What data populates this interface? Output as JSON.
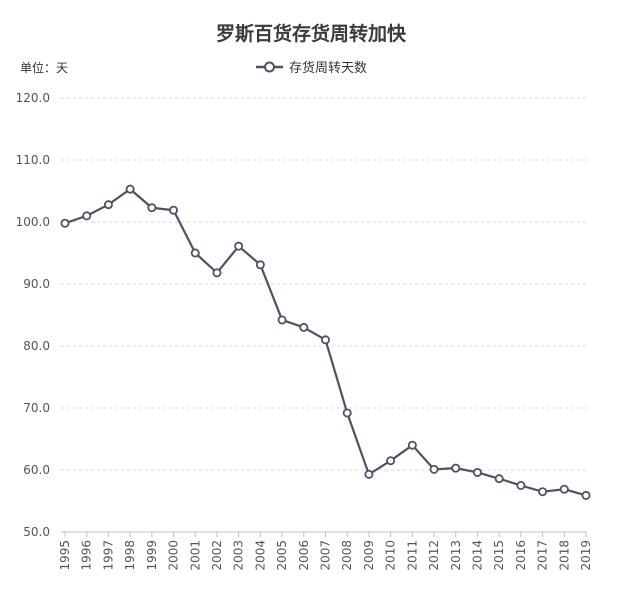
{
  "chart_data": {
    "type": "line",
    "title": "罗斯百货存货周转加快",
    "unit_label": "单位：天",
    "ylim": [
      50,
      120
    ],
    "yticks": [
      50,
      60,
      70,
      80,
      90,
      100,
      110,
      120
    ],
    "grid": true,
    "legend_position": "top-center",
    "categories": [
      "1995",
      "1996",
      "1997",
      "1998",
      "1999",
      "2000",
      "2001",
      "2002",
      "2003",
      "2004",
      "2005",
      "2006",
      "2007",
      "2008",
      "2009",
      "2010",
      "2011",
      "2012",
      "2013",
      "2014",
      "2015",
      "2016",
      "2017",
      "2018",
      "2019"
    ],
    "series": [
      {
        "name": "存货周转天数",
        "values": [
          99.8,
          101.0,
          102.8,
          105.3,
          102.3,
          101.9,
          95.0,
          91.8,
          96.1,
          93.1,
          84.2,
          83.0,
          81.0,
          69.2,
          59.3,
          61.5,
          64.0,
          60.1,
          60.3,
          59.6,
          58.6,
          57.5,
          56.5,
          56.9,
          55.9
        ]
      }
    ]
  },
  "colors": {
    "line": "#4a5463",
    "grid": "#d9d9d9",
    "axis_text": "#555555",
    "title": "#3a3a3a"
  }
}
